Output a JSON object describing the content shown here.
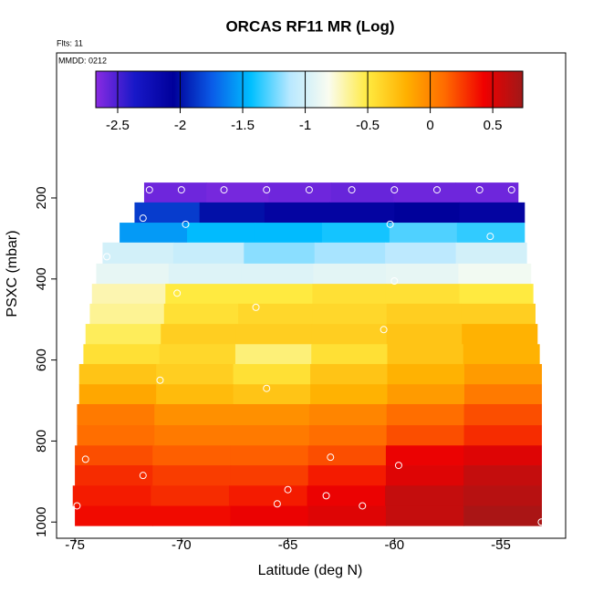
{
  "chart_data": {
    "type": "heatmap",
    "title": "ORCAS RF11 MR (Log)",
    "annotations": [
      "Flts: 11",
      "MMDD: 0212"
    ],
    "xlabel": "Latitude (deg N)",
    "ylabel": "PSXC (mbar)",
    "xlim": [
      -75.86,
      -51.96
    ],
    "xticks": [
      -75,
      -70,
      -65,
      -60,
      -55
    ],
    "ylim": [
      1040,
      -158
    ],
    "yticks": [
      200,
      400,
      600,
      800,
      1000
    ],
    "zlim": [
      -2.675,
      0.74
    ],
    "zticks": [
      -2.5,
      -2.0,
      -1.5,
      -1.0,
      -0.5,
      0.0,
      0.5
    ],
    "colormap": [
      "#8a2be2",
      "#1818c8",
      "#00009a",
      "#0a5ce8",
      "#00c0ff",
      "#b8e8ff",
      "#fafcf0",
      "#ffea40",
      "#ffb000",
      "#ff6a00",
      "#f00000",
      "#a01818"
    ],
    "bands": [
      {
        "p": [
          162,
          211
        ],
        "lat": [
          -71.75,
          -54.2
        ],
        "values": [
          -2.6,
          -2.62,
          -2.6,
          -2.58,
          -2.6,
          -2.6
        ]
      },
      {
        "p": [
          211,
          261
        ],
        "lat": [
          -72.2,
          -53.9
        ],
        "values": [
          -1.85,
          -2.0,
          -2.1,
          -2.1,
          -2.05,
          -2.1
        ]
      },
      {
        "p": [
          261,
          310
        ],
        "lat": [
          -72.9,
          -53.9
        ],
        "values": [
          -1.55,
          -1.45,
          -1.45,
          -1.4,
          -1.3,
          -1.35
        ]
      },
      {
        "p": [
          310,
          362
        ],
        "lat": [
          -73.7,
          -53.8
        ],
        "values": [
          -1.0,
          -1.05,
          -1.2,
          -1.15,
          -1.1,
          -1.0
        ]
      },
      {
        "p": [
          362,
          412
        ],
        "lat": [
          -74.0,
          -53.6
        ],
        "values": [
          -0.9,
          -0.95,
          -0.95,
          -0.92,
          -0.9,
          -0.85
        ]
      },
      {
        "p": [
          412,
          461
        ],
        "lat": [
          -74.2,
          -53.5
        ],
        "values": [
          -0.7,
          -0.5,
          -0.5,
          -0.45,
          -0.45,
          -0.5
        ]
      },
      {
        "p": [
          461,
          511
        ],
        "lat": [
          -74.3,
          -53.4
        ],
        "values": [
          -0.65,
          -0.45,
          -0.4,
          -0.4,
          -0.35,
          -0.35
        ]
      },
      {
        "p": [
          511,
          561
        ],
        "lat": [
          -74.5,
          -53.3
        ],
        "values": [
          -0.55,
          -0.35,
          -0.35,
          -0.35,
          -0.3,
          -0.2
        ]
      },
      {
        "p": [
          561,
          610
        ],
        "lat": [
          -74.6,
          -53.2
        ],
        "values": [
          -0.45,
          -0.4,
          -0.6,
          -0.45,
          -0.3,
          -0.2
        ]
      },
      {
        "p": [
          610,
          660
        ],
        "lat": [
          -74.8,
          -53.1
        ],
        "values": [
          -0.3,
          -0.35,
          -0.45,
          -0.3,
          -0.2,
          -0.1
        ]
      },
      {
        "p": [
          660,
          709
        ],
        "lat": [
          -74.8,
          -53.1
        ],
        "values": [
          -0.15,
          -0.25,
          -0.3,
          -0.2,
          -0.1,
          0.05
        ]
      },
      {
        "p": [
          709,
          761
        ],
        "lat": [
          -74.9,
          -53.1
        ],
        "values": [
          0.05,
          -0.05,
          -0.05,
          0.0,
          0.1,
          0.2
        ]
      },
      {
        "p": [
          761,
          811
        ],
        "lat": [
          -74.9,
          -53.1
        ],
        "values": [
          0.1,
          0.05,
          0.05,
          0.1,
          0.2,
          0.3
        ]
      },
      {
        "p": [
          811,
          860
        ],
        "lat": [
          -75.0,
          -53.1
        ],
        "values": [
          0.2,
          0.15,
          0.15,
          0.2,
          0.45,
          0.5
        ]
      },
      {
        "p": [
          860,
          910
        ],
        "lat": [
          -75.0,
          -53.1
        ],
        "values": [
          0.3,
          0.25,
          0.25,
          0.35,
          0.5,
          0.6
        ]
      },
      {
        "p": [
          910,
          960
        ],
        "lat": [
          -75.1,
          -53.1
        ],
        "values": [
          0.35,
          0.3,
          0.35,
          0.45,
          0.6,
          0.65
        ]
      },
      {
        "p": [
          960,
          1009
        ],
        "lat": [
          -75.0,
          -53.1
        ],
        "values": [
          0.4,
          0.4,
          0.45,
          0.5,
          0.6,
          0.7
        ]
      }
    ],
    "points": {
      "x": [
        -71.5,
        -70,
        -68,
        -66,
        -64,
        -62,
        -60,
        -58,
        -56,
        -54.5,
        -71.8,
        -69.8,
        -60.2,
        -55.5,
        -74.2,
        -73.5,
        -60,
        -70.2,
        -66.5,
        -60.5,
        -71,
        -66,
        -63,
        -59.8,
        -74.5,
        -71.8,
        -65,
        -63.2,
        -61.5,
        -74.9,
        -65.5,
        -53.1
      ],
      "y": [
        180,
        180,
        180,
        180,
        180,
        180,
        180,
        180,
        180,
        180,
        250,
        265,
        265,
        295,
        330,
        345,
        405,
        435,
        470,
        525,
        650,
        670,
        840,
        860,
        845,
        885,
        920,
        935,
        960,
        960,
        955,
        1000
      ]
    }
  }
}
